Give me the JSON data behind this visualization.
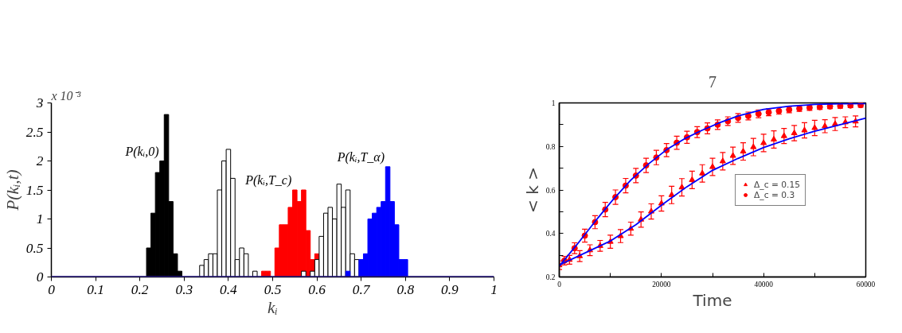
{
  "chart_data": [
    {
      "type": "bar",
      "xlabel": "kᵢ",
      "ylabel": "P(kᵢ,t)",
      "xlim": [
        0,
        1
      ],
      "ylim": [
        0,
        3
      ],
      "xticks": [
        0,
        0.1,
        0.2,
        0.3,
        0.4,
        0.5,
        0.6,
        0.7,
        0.8,
        0.9,
        1
      ],
      "yticks": [
        0,
        0.5,
        1,
        1.5,
        2,
        2.5,
        3
      ],
      "series": [
        {
          "color": "#000000",
          "x": [
            0.22,
            0.23,
            0.24,
            0.25,
            0.26,
            0.27,
            0.28,
            0.29
          ],
          "values": [
            0.5,
            1.1,
            1.8,
            2.0,
            2.8,
            1.3,
            0.4,
            0.1
          ]
        },
        {
          "color": "#ffffff",
          "x": [
            0.34,
            0.35,
            0.36,
            0.37,
            0.38,
            0.39,
            0.4,
            0.41,
            0.42,
            0.43,
            0.44,
            0.45,
            0.46
          ],
          "values": [
            0.2,
            0.3,
            0.4,
            0.4,
            1.5,
            2.0,
            2.2,
            1.7,
            0.3,
            0.5,
            0.4,
            0,
            0.1
          ]
        },
        {
          "color": "#ff0000",
          "x": [
            0.48,
            0.49,
            0.5,
            0.51,
            0.52,
            0.53,
            0.54,
            0.55,
            0.56,
            0.57,
            0.58,
            0.59,
            0.6
          ],
          "values": [
            0.1,
            0.1,
            0,
            0.5,
            0.9,
            0.9,
            1.2,
            1.5,
            1.3,
            1.5,
            0.8,
            0.3,
            0.4
          ]
        },
        {
          "color": "#ffffff",
          "x": [
            0.57,
            0.58,
            0.59,
            0.6,
            0.61,
            0.62,
            0.63,
            0.64,
            0.65,
            0.66,
            0.67,
            0.68,
            0.69
          ],
          "values": [
            0.1,
            0,
            0.1,
            0.3,
            0.7,
            1.1,
            1.2,
            1.0,
            1.6,
            1.2,
            1.5,
            0.4,
            0.3
          ]
        },
        {
          "color": "#0000ff",
          "x": [
            0.67,
            0.68,
            0.69,
            0.7,
            0.71,
            0.72,
            0.73,
            0.74,
            0.75,
            0.76,
            0.77,
            0.78,
            0.79,
            0.8
          ],
          "values": [
            0.1,
            0,
            0,
            0.3,
            0.4,
            1.0,
            1.1,
            1.2,
            1.3,
            1.9,
            1.3,
            0.9,
            0.3,
            0.3
          ]
        }
      ],
      "ref_lines": [
        {
          "axis": "y",
          "value": 0,
          "color": "#2a1a8c"
        }
      ],
      "annotations": [
        "x 10⁻³",
        {
          "text": "P(kᵢ,0)",
          "x": 0.25,
          "y": 2.0
        },
        {
          "text": "P(kᵢ,T_c)",
          "x": 0.55,
          "y": 1.5
        },
        {
          "text": "P(kᵢ,T_α)",
          "x": 0.76,
          "y": 1.9
        }
      ]
    },
    {
      "type": "scatter",
      "xlabel": "Time",
      "ylabel": "< k >",
      "xlim": [
        0,
        60000
      ],
      "ylim": [
        0.2,
        1
      ],
      "xticks": [
        0,
        {
          "value": 10000,
          "label": null
        },
        20000,
        {
          "value": 30000,
          "label": null
        },
        40000,
        {
          "value": 50000,
          "label": null
        },
        60000
      ],
      "yticks": [
        0.2,
        {
          "value": 0.3,
          "label": null
        },
        0.4,
        {
          "value": 0.5,
          "label": null
        },
        0.6,
        {
          "value": 0.7,
          "label": null
        },
        0.8,
        {
          "value": 0.9,
          "label": null
        },
        1
      ],
      "legend": "right",
      "series": [
        {
          "name": "Δ_c = 0.15",
          "type": "scatter",
          "marker": "triangle",
          "color": "#ff0000",
          "x": [
            0,
            2000,
            4000,
            6000,
            8000,
            10000,
            12000,
            14000,
            16000,
            18000,
            20000,
            22000,
            24000,
            26000,
            28000,
            30000,
            32000,
            34000,
            36000,
            38000,
            40000,
            42000,
            44000,
            46000,
            48000,
            50000,
            52000,
            54000,
            56000,
            58000
          ],
          "values": [
            0.254,
            0.279,
            0.296,
            0.323,
            0.343,
            0.362,
            0.388,
            0.422,
            0.464,
            0.501,
            0.538,
            0.577,
            0.612,
            0.646,
            0.676,
            0.706,
            0.732,
            0.757,
            0.777,
            0.797,
            0.816,
            0.832,
            0.848,
            0.861,
            0.874,
            0.885,
            0.893,
            0.903,
            0.911,
            0.915
          ],
          "errors": [
            0.02,
            0.02,
            0.025,
            0.025,
            0.025,
            0.03,
            0.03,
            0.03,
            0.035,
            0.035,
            0.035,
            0.04,
            0.04,
            0.04,
            0.04,
            0.04,
            0.04,
            0.04,
            0.04,
            0.04,
            0.04,
            0.04,
            0.035,
            0.035,
            0.035,
            0.035,
            0.03,
            0.03,
            0.025,
            0.025
          ]
        },
        {
          "name": "Δ_c = 0.3",
          "type": "scatter",
          "marker": "circle",
          "color": "#ff0000",
          "x": [
            1000,
            3000,
            5000,
            7000,
            9000,
            11000,
            13000,
            15000,
            17000,
            19000,
            21000,
            23000,
            25000,
            27000,
            29000,
            31000,
            33000,
            35000,
            37000,
            39000,
            41000,
            43000,
            45000,
            47000,
            49000,
            51000,
            53000,
            55000,
            57000,
            59000
          ],
          "values": [
            0.275,
            0.332,
            0.39,
            0.452,
            0.51,
            0.567,
            0.62,
            0.666,
            0.713,
            0.749,
            0.783,
            0.817,
            0.842,
            0.866,
            0.883,
            0.9,
            0.916,
            0.931,
            0.94,
            0.95,
            0.957,
            0.963,
            0.969,
            0.974,
            0.978,
            0.981,
            0.984,
            0.986,
            0.988,
            0.99
          ],
          "errors": [
            0.02,
            0.025,
            0.03,
            0.03,
            0.033,
            0.033,
            0.033,
            0.033,
            0.033,
            0.033,
            0.03,
            0.03,
            0.028,
            0.025,
            0.025,
            0.022,
            0.02,
            0.02,
            0.018,
            0.018,
            0.016,
            0.015,
            0.014,
            0.013,
            0.012,
            0.011,
            0.01,
            0.01,
            0.01,
            0.01
          ]
        },
        {
          "type": "line",
          "color": "#0000ff",
          "x": [
            0,
            5000,
            10000,
            15000,
            20000,
            25000,
            30000,
            35000,
            40000,
            45000,
            50000,
            55000,
            60000
          ],
          "values": [
            0.255,
            0.31,
            0.365,
            0.44,
            0.53,
            0.615,
            0.69,
            0.745,
            0.795,
            0.835,
            0.87,
            0.9,
            0.93
          ]
        },
        {
          "type": "line",
          "color": "#0000ff",
          "x": [
            0,
            3500,
            7000,
            10500,
            14000,
            17500,
            21000,
            24500,
            28000,
            31500,
            35000,
            40000,
            45000,
            50000,
            55000,
            60000
          ],
          "values": [
            0.25,
            0.35,
            0.455,
            0.555,
            0.645,
            0.72,
            0.785,
            0.835,
            0.875,
            0.91,
            0.94,
            0.97,
            0.985,
            0.993,
            0.996,
            0.997
          ]
        }
      ],
      "annotations": [
        "7"
      ]
    }
  ]
}
